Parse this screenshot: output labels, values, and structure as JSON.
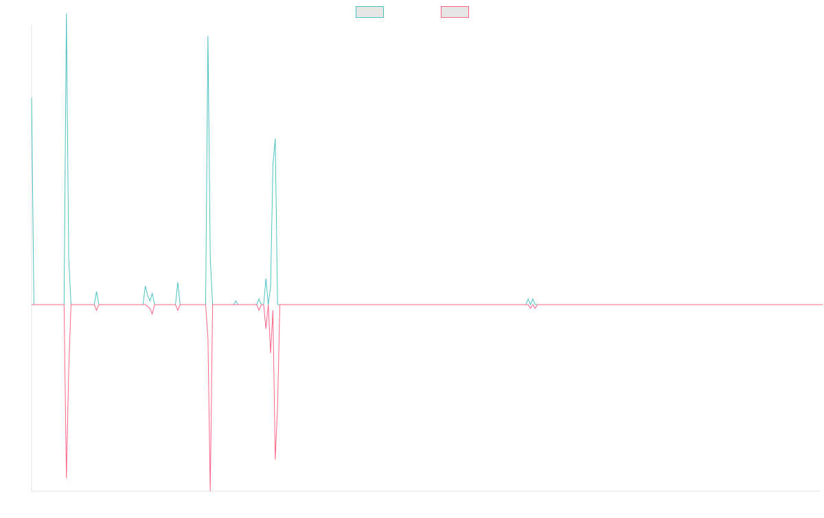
{
  "chart_data": {
    "type": "line",
    "title": "",
    "xlabel": "",
    "ylabel": "",
    "grid": false,
    "legend_position": "top-center",
    "ylim": [
      -1,
      1.5
    ],
    "series": [
      {
        "color": "#4bc0c0",
        "fill": "#e6e6e6",
        "values": [
          1.11,
          0,
          0,
          0,
          0,
          0,
          0,
          0,
          0,
          0,
          0,
          0,
          0,
          0,
          0,
          1.56,
          0.25,
          0,
          0,
          0,
          0,
          0,
          0,
          0,
          0,
          0,
          0,
          0,
          0.07,
          0,
          0,
          0,
          0,
          0,
          0,
          0,
          0,
          0,
          0,
          0,
          0,
          0,
          0,
          0,
          0,
          0,
          0,
          0,
          0,
          0.1,
          0.05,
          0.02,
          0.06,
          0,
          0,
          0,
          0,
          0,
          0,
          0,
          0,
          0,
          0,
          0.12,
          0,
          0,
          0,
          0,
          0,
          0,
          0,
          0,
          0,
          0,
          0,
          0,
          1.44,
          0.25,
          0,
          0,
          0,
          0,
          0,
          0,
          0,
          0,
          0,
          0,
          0.02,
          0,
          0,
          0,
          0,
          0,
          0,
          0,
          0,
          0,
          0.03,
          0,
          0,
          0.14,
          0,
          0.1,
          0.75,
          0.89,
          0,
          0,
          0,
          0,
          0,
          0,
          0,
          0,
          0,
          0,
          0,
          0,
          0,
          0,
          0,
          0,
          0,
          0,
          0,
          0,
          0,
          0,
          0,
          0,
          0,
          0,
          0,
          0,
          0,
          0,
          0,
          0,
          0,
          0,
          0,
          0,
          0,
          0,
          0,
          0,
          0,
          0,
          0,
          0,
          0,
          0,
          0,
          0,
          0,
          0,
          0,
          0,
          0,
          0,
          0,
          0,
          0,
          0,
          0,
          0,
          0,
          0,
          0,
          0,
          0,
          0,
          0,
          0,
          0,
          0,
          0,
          0,
          0,
          0,
          0,
          0,
          0,
          0,
          0,
          0,
          0,
          0,
          0,
          0,
          0,
          0,
          0,
          0,
          0,
          0,
          0,
          0,
          0,
          0,
          0,
          0,
          0,
          0,
          0,
          0,
          0,
          0,
          0,
          0,
          0,
          0,
          0,
          0,
          0.03,
          0,
          0.03,
          0,
          0,
          0,
          0,
          0,
          0,
          0,
          0,
          0,
          0,
          0,
          0,
          0,
          0,
          0,
          0,
          0,
          0,
          0,
          0,
          0,
          0,
          0,
          0,
          0,
          0,
          0,
          0,
          0,
          0,
          0,
          0,
          0,
          0,
          0,
          0,
          0,
          0,
          0,
          0,
          0,
          0,
          0,
          0,
          0,
          0,
          0,
          0,
          0,
          0,
          0,
          0,
          0,
          0,
          0,
          0,
          0,
          0,
          0,
          0,
          0,
          0,
          0,
          0,
          0,
          0,
          0,
          0,
          0,
          0,
          0,
          0,
          0,
          0,
          0,
          0,
          0,
          0,
          0,
          0,
          0,
          0,
          0,
          0,
          0,
          0,
          0,
          0,
          0,
          0,
          0,
          0,
          0,
          0,
          0,
          0,
          0,
          0,
          0,
          0,
          0,
          0,
          0,
          0,
          0,
          0,
          0,
          0,
          0,
          0,
          0,
          0,
          0,
          0,
          0,
          0,
          0,
          0,
          0,
          0,
          0,
          0,
          0,
          0
        ]
      },
      {
        "color": "#ff6384",
        "fill": "#e6e6e6",
        "values": [
          0,
          0,
          0,
          0,
          0,
          0,
          0,
          0,
          0,
          0,
          0,
          0,
          0,
          0,
          0,
          -0.93,
          -0.35,
          0,
          0,
          0,
          0,
          0,
          0,
          0,
          0,
          0,
          0,
          0,
          -0.03,
          0,
          0,
          0,
          0,
          0,
          0,
          0,
          0,
          0,
          0,
          0,
          0,
          0,
          0,
          0,
          0,
          0,
          0,
          0,
          0,
          0,
          -0.01,
          -0.02,
          -0.05,
          0,
          0,
          0,
          0,
          0,
          0,
          0,
          0,
          0,
          0,
          -0.03,
          0,
          0,
          0,
          0,
          0,
          0,
          0,
          0,
          0,
          0,
          0,
          0,
          -0.18,
          -1,
          0,
          0,
          0,
          0,
          0,
          0,
          0,
          0,
          0,
          0,
          0,
          0,
          0,
          0,
          0,
          0,
          0,
          0,
          0,
          0,
          -0.03,
          0,
          0,
          -0.13,
          0,
          -0.26,
          -0.03,
          -0.83,
          -0.55,
          0,
          0,
          0,
          0,
          0,
          0,
          0,
          0,
          0,
          0,
          0,
          0,
          0,
          0,
          0,
          0,
          0,
          0,
          0,
          0,
          0,
          0,
          0,
          0,
          0,
          0,
          0,
          0,
          0,
          0,
          0,
          0,
          0,
          0,
          0,
          0,
          0,
          0,
          0,
          0,
          0,
          0,
          0,
          0,
          0,
          0,
          0,
          0,
          0,
          0,
          0,
          0,
          0,
          0,
          0,
          0,
          0,
          0,
          0,
          0,
          0,
          0,
          0,
          0,
          0,
          0,
          0,
          0,
          0,
          0,
          0,
          0,
          0,
          0,
          0,
          0,
          0,
          0,
          0,
          0,
          0,
          0,
          0,
          0,
          0,
          0,
          0,
          0,
          0,
          0,
          0,
          0,
          0,
          0,
          0,
          0,
          0,
          0,
          0,
          0,
          0,
          0,
          0,
          0,
          0,
          0,
          0,
          0,
          -0.02,
          0,
          -0.02,
          0,
          0,
          0,
          0,
          0,
          0,
          0,
          0,
          0,
          0,
          0,
          0,
          0,
          0,
          0,
          0,
          0,
          0,
          0,
          0,
          0,
          0,
          0,
          0,
          0,
          0,
          0,
          0,
          0,
          0,
          0,
          0,
          0,
          0,
          0,
          0,
          0,
          0,
          0,
          0,
          0,
          0,
          0,
          0,
          0,
          0,
          0,
          0,
          0,
          0,
          0,
          0,
          0,
          0,
          0,
          0,
          0,
          0,
          0,
          0,
          0,
          0,
          0,
          0,
          0,
          0,
          0,
          0,
          0,
          0,
          0,
          0,
          0,
          0,
          0,
          0,
          0,
          0,
          0,
          0,
          0,
          0,
          0,
          0,
          0,
          0,
          0,
          0,
          0,
          0,
          0,
          0,
          0,
          0,
          0,
          0,
          0,
          0,
          0,
          0,
          0,
          0,
          0,
          0,
          0,
          0,
          0,
          0,
          0,
          0,
          0,
          0,
          0,
          0,
          0,
          0,
          0,
          0,
          0,
          0,
          0,
          0,
          0,
          0
        ]
      }
    ]
  }
}
